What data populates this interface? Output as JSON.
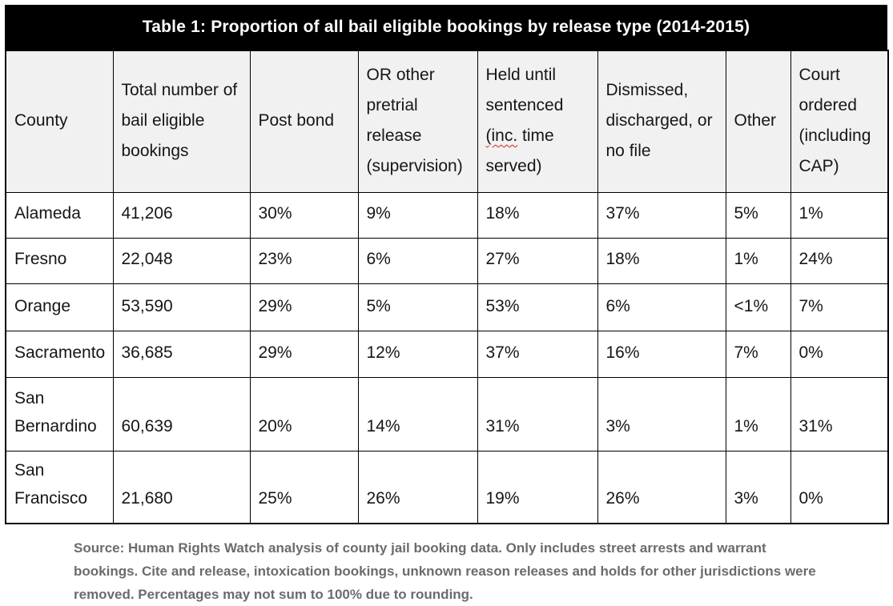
{
  "table": {
    "title": "Table 1: Proportion of all bail eligible bookings by release type (2014-2015)",
    "columns": [
      {
        "label": "County"
      },
      {
        "label": "Total number of bail eligible bookings"
      },
      {
        "label": "Post bond"
      },
      {
        "label": "OR other pretrial release (supervision)"
      },
      {
        "label": "Held until sentenced (inc. time served)",
        "label_parts": [
          "Held until sentenced ",
          "(inc.",
          " time served)"
        ]
      },
      {
        "label": "Dismissed, discharged, or no file"
      },
      {
        "label": "Other"
      },
      {
        "label": "Court ordered (including CAP)"
      }
    ],
    "rows": [
      {
        "cells": [
          "Alameda",
          "41,206",
          "30%",
          "9%",
          "18%",
          "37%",
          "5%",
          "1%"
        ]
      },
      {
        "cells": [
          "Fresno",
          "22,048",
          "23%",
          "6%",
          "27%",
          "18%",
          "1%",
          "24%"
        ]
      },
      {
        "cells": [
          "Orange",
          "53,590",
          "29%",
          "5%",
          "53%",
          "6%",
          "<1%",
          "7%"
        ]
      },
      {
        "cells": [
          "Sacramento",
          "36,685",
          "29%",
          "12%",
          "37%",
          "16%",
          "7%",
          "0%"
        ]
      },
      {
        "cells": [
          "San Bernardino",
          "60,639",
          "20%",
          "14%",
          "31%",
          "3%",
          "1%",
          "31%"
        ]
      },
      {
        "cells": [
          "San Francisco",
          "21,680",
          "25%",
          "26%",
          "19%",
          "26%",
          "3%",
          "0%"
        ]
      }
    ]
  },
  "footer": {
    "source": "Source: Human Rights Watch analysis of county jail booking data. Only includes street arrests and warrant bookings. Cite and release, intoxication bookings, unknown reason releases and holds for other jurisdictions were removed. Percentages may not sum to 100% due to rounding."
  },
  "colors": {
    "title_bg": "#000000",
    "title_text": "#ffffff",
    "header_bg": "#f1f1f1",
    "border": "#000000",
    "footer_text": "#6b6b6b",
    "spellcheck_underline": "#c8281e"
  }
}
